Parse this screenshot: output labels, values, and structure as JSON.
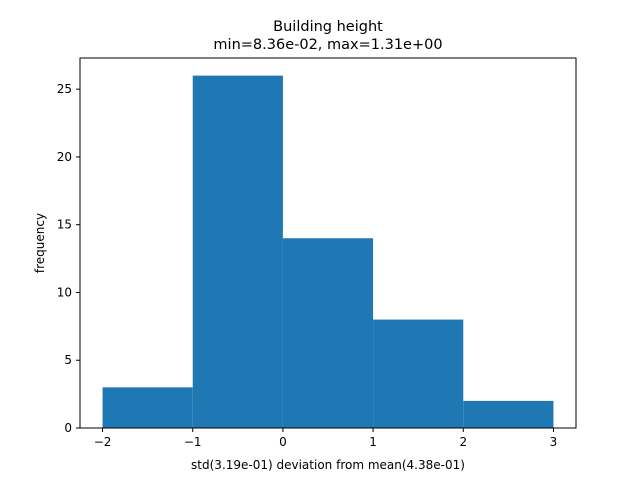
{
  "chart_data": {
    "type": "bar",
    "title": "Building height",
    "subtitle": "min=8.36e-02, max=1.31e+00",
    "xlabel": "std(3.19e-01) deviation from mean(4.38e-01)",
    "ylabel": "frequency",
    "xlim": [
      -2.25,
      3.25
    ],
    "ylim": [
      0,
      27.3
    ],
    "bins": [
      {
        "x0": -2,
        "x1": -1,
        "value": 3
      },
      {
        "x0": -1,
        "x1": 0,
        "value": 26
      },
      {
        "x0": 0,
        "x1": 1,
        "value": 14
      },
      {
        "x0": 1,
        "x1": 2,
        "value": 8
      },
      {
        "x0": 2,
        "x1": 3,
        "value": 2
      }
    ],
    "xticks": [
      {
        "value": -2,
        "label": "−2",
        "color": "#000000"
      },
      {
        "value": -1,
        "label": "−1",
        "color": "#000000"
      },
      {
        "value": 0,
        "label": "0",
        "color": "#ff0000"
      },
      {
        "value": 1,
        "label": "1",
        "color": "#000000"
      },
      {
        "value": 2,
        "label": "2",
        "color": "#000000"
      },
      {
        "value": 3,
        "label": "3",
        "color": "#000000"
      }
    ],
    "yticks": [
      {
        "value": 0,
        "label": "0"
      },
      {
        "value": 5,
        "label": "5"
      },
      {
        "value": 10,
        "label": "10"
      },
      {
        "value": 15,
        "label": "15"
      },
      {
        "value": 20,
        "label": "20"
      },
      {
        "value": 25,
        "label": "25"
      }
    ],
    "bar_color": "#1f77b4",
    "grid": false
  }
}
